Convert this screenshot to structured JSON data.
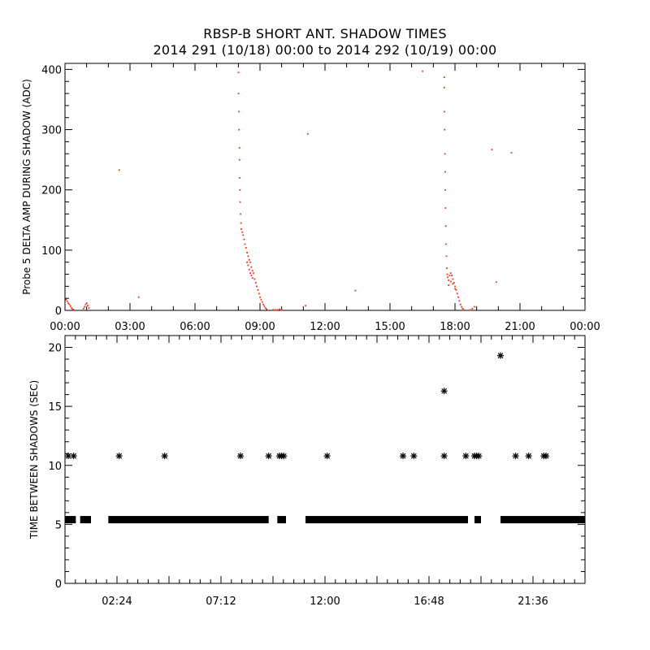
{
  "title": "RBSP-B SHORT ANT. SHADOW TIMES",
  "subtitle": "2014 291 (10/18) 00:00 to 2014 292 (10/19) 00:00",
  "colors": {
    "scatter": "#e8301c",
    "axis": "#000000",
    "background": "#ffffff"
  },
  "chart_data": [
    {
      "type": "scatter",
      "ylabel": "Probe 5 DELTA AMP DURING SHADOW (ADC)",
      "xlabel": "",
      "xlim": [
        0,
        24
      ],
      "ylim": [
        0,
        410
      ],
      "xticks": [
        "00:00",
        "03:00",
        "06:00",
        "09:00",
        "12:00",
        "15:00",
        "18:00",
        "21:00",
        "00:00"
      ],
      "yticks": [
        "0",
        "100",
        "200",
        "300",
        "400"
      ],
      "grid": false,
      "series": [
        {
          "color": "#e8301c",
          "points": [
            [
              0.05,
              18
            ],
            [
              0.1,
              15
            ],
            [
              0.15,
              12
            ],
            [
              0.2,
              10
            ],
            [
              0.25,
              7
            ],
            [
              0.3,
              4
            ],
            [
              0.35,
              2
            ],
            [
              0.4,
              1
            ],
            [
              0.85,
              3
            ],
            [
              0.9,
              6
            ],
            [
              0.95,
              10
            ],
            [
              1.0,
              12
            ],
            [
              1.05,
              8
            ],
            [
              1.1,
              4
            ],
            [
              2.5,
              233
            ],
            [
              3.4,
              22
            ],
            [
              11.1,
              8
            ],
            [
              11.2,
              293
            ],
            [
              13.4,
              33
            ],
            [
              16.5,
              397
            ],
            [
              19.7,
              267
            ],
            [
              19.9,
              47
            ],
            [
              20.6,
              262
            ],
            [
              8.0,
              395
            ],
            [
              8.0,
              360
            ],
            [
              8.02,
              330
            ],
            [
              8.03,
              300
            ],
            [
              8.05,
              270
            ],
            [
              8.05,
              250
            ],
            [
              8.06,
              220
            ],
            [
              8.07,
              200
            ],
            [
              8.08,
              180
            ],
            [
              8.1,
              160
            ],
            [
              8.12,
              145
            ],
            [
              8.13,
              135
            ],
            [
              8.18,
              130
            ],
            [
              8.22,
              125
            ],
            [
              8.26,
              118
            ],
            [
              8.3,
              110
            ],
            [
              8.35,
              104
            ],
            [
              8.4,
              96
            ],
            [
              8.45,
              90
            ],
            [
              8.5,
              84
            ],
            [
              8.55,
              80
            ],
            [
              8.6,
              72
            ],
            [
              8.65,
              66
            ],
            [
              8.7,
              62
            ],
            [
              8.75,
              52
            ],
            [
              8.8,
              46
            ],
            [
              8.85,
              40
            ],
            [
              8.9,
              34
            ],
            [
              8.95,
              28
            ],
            [
              9.0,
              22
            ],
            [
              9.05,
              18
            ],
            [
              9.1,
              14
            ],
            [
              9.15,
              10
            ],
            [
              9.2,
              7
            ],
            [
              9.25,
              4
            ],
            [
              9.3,
              2
            ],
            [
              8.4,
              80
            ],
            [
              8.45,
              75
            ],
            [
              8.5,
              68
            ],
            [
              8.55,
              62
            ],
            [
              8.6,
              58
            ],
            [
              8.65,
              54
            ],
            [
              9.6,
              1
            ],
            [
              9.7,
              1
            ],
            [
              9.8,
              1
            ],
            [
              9.9,
              2
            ],
            [
              10.0,
              1
            ],
            [
              17.5,
              387
            ],
            [
              17.5,
              370
            ],
            [
              17.51,
              330
            ],
            [
              17.52,
              300
            ],
            [
              17.53,
              260
            ],
            [
              17.54,
              230
            ],
            [
              17.55,
              200
            ],
            [
              17.56,
              170
            ],
            [
              17.57,
              140
            ],
            [
              17.58,
              110
            ],
            [
              17.6,
              90
            ],
            [
              17.62,
              70
            ],
            [
              17.64,
              60
            ],
            [
              17.66,
              55
            ],
            [
              17.7,
              50
            ],
            [
              17.75,
              58
            ],
            [
              17.8,
              62
            ],
            [
              17.85,
              58
            ],
            [
              17.9,
              52
            ],
            [
              17.95,
              46
            ],
            [
              18.0,
              40
            ],
            [
              18.05,
              34
            ],
            [
              18.1,
              28
            ],
            [
              18.15,
              22
            ],
            [
              18.2,
              16
            ],
            [
              18.25,
              10
            ],
            [
              18.3,
              6
            ],
            [
              18.35,
              3
            ],
            [
              18.4,
              1
            ],
            [
              17.7,
              42
            ],
            [
              17.8,
              48
            ],
            [
              17.9,
              44
            ],
            [
              18.0,
              36
            ],
            [
              18.7,
              1
            ],
            [
              18.8,
              3
            ],
            [
              18.9,
              6
            ]
          ]
        }
      ]
    },
    {
      "type": "scatter",
      "ylabel": "TIME BETWEEN SHADOWS (SEC)",
      "xlabel": "",
      "xlim": [
        0,
        24
      ],
      "ylim": [
        0,
        21
      ],
      "xticks": [
        "02:24",
        "07:12",
        "12:00",
        "16:48",
        "21:36"
      ],
      "xtick_values_hours": [
        2.4,
        7.2,
        12.0,
        16.8,
        21.6
      ],
      "yticks": [
        "0",
        "5",
        "10",
        "15",
        "20"
      ],
      "grid": false,
      "baseline_value": 5.4,
      "baseline_segments_hours": [
        [
          0.0,
          0.5
        ],
        [
          0.7,
          1.2
        ],
        [
          2.0,
          9.4
        ],
        [
          9.8,
          10.2
        ],
        [
          11.1,
          18.6
        ],
        [
          18.9,
          19.2
        ],
        [
          20.1,
          24.0
        ]
      ],
      "series": [
        {
          "color": "#000000",
          "points": [
            [
              0.15,
              10.8
            ],
            [
              0.4,
              10.8
            ],
            [
              2.5,
              10.8
            ],
            [
              4.6,
              10.8
            ],
            [
              8.1,
              10.8
            ],
            [
              9.4,
              10.8
            ],
            [
              9.9,
              10.8
            ],
            [
              10.0,
              10.8
            ],
            [
              10.1,
              10.8
            ],
            [
              12.1,
              10.8
            ],
            [
              15.6,
              10.8
            ],
            [
              16.1,
              10.8
            ],
            [
              17.5,
              10.8
            ],
            [
              18.5,
              10.8
            ],
            [
              18.9,
              10.8
            ],
            [
              19.0,
              10.8
            ],
            [
              19.1,
              10.8
            ],
            [
              20.8,
              10.8
            ],
            [
              21.4,
              10.8
            ],
            [
              22.1,
              10.8
            ],
            [
              22.2,
              10.8
            ],
            [
              17.5,
              16.3
            ],
            [
              20.1,
              19.3
            ]
          ]
        }
      ]
    }
  ]
}
